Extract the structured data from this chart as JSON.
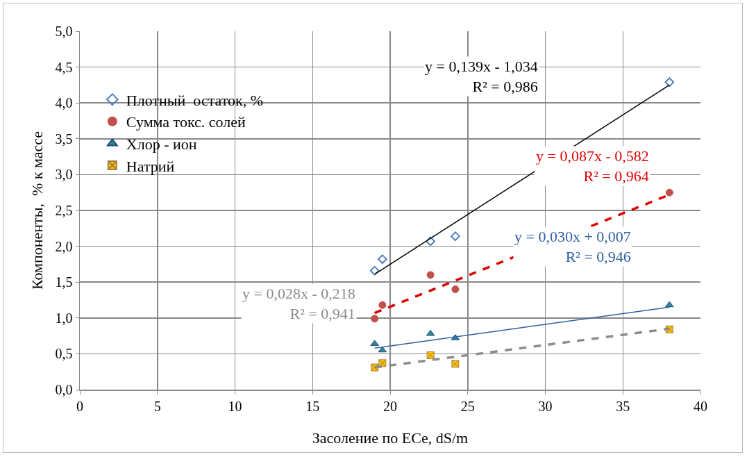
{
  "chart_data": {
    "type": "scatter",
    "xlabel": "Засоление по ECe, dS/m",
    "ylabel": "Компоненты,  % к массе",
    "xlim": [
      0,
      40
    ],
    "xticks": [
      0,
      5,
      10,
      15,
      20,
      25,
      30,
      35,
      40
    ],
    "ylim": [
      0,
      5
    ],
    "yticks": [
      {
        "value": 0,
        "label": "0,0"
      },
      {
        "value": 0.5,
        "label": "0,5"
      },
      {
        "value": 1,
        "label": "1,0"
      },
      {
        "value": 1.5,
        "label": "1,5"
      },
      {
        "value": 2,
        "label": "2,0"
      },
      {
        "value": 2.5,
        "label": "2,5"
      },
      {
        "value": 3,
        "label": "3,0"
      },
      {
        "value": 3.5,
        "label": "3,5"
      },
      {
        "value": 4,
        "label": "4,0"
      },
      {
        "value": 4.5,
        "label": "4,5"
      },
      {
        "value": 5,
        "label": "5,0"
      }
    ],
    "grid": true,
    "legend": "top left",
    "series": [
      {
        "name": "Плотный  остаток, %",
        "color": "#4f81bd",
        "marker": "diamond",
        "x": [
          19.0,
          19.5,
          22.6,
          24.2,
          38.0
        ],
        "values": [
          1.66,
          1.82,
          2.07,
          2.14,
          4.29
        ]
      },
      {
        "name": "Сумма токс. солей",
        "color": "#c0504d",
        "marker": "circle",
        "x": [
          19.0,
          19.5,
          22.6,
          24.2,
          38.0
        ],
        "values": [
          0.99,
          1.18,
          1.6,
          1.4,
          2.75
        ]
      },
      {
        "name": "Хлор - ион",
        "color": "#31859c",
        "marker": "triangle",
        "x": [
          19.0,
          19.5,
          22.6,
          24.2,
          38.0
        ],
        "values": [
          0.64,
          0.55,
          0.78,
          0.72,
          1.18
        ]
      },
      {
        "name": "Натрий",
        "color": "#ffc000",
        "marker": "cross",
        "x": [
          19.0,
          19.5,
          22.6,
          24.2,
          38.0
        ],
        "values": [
          0.31,
          0.37,
          0.48,
          0.36,
          0.84
        ]
      },
      {
        "type": "line",
        "color": "#000000",
        "marker": "none",
        "line_style": "solid",
        "x": [
          19,
          38
        ],
        "values": [
          1.61,
          4.25
        ]
      },
      {
        "type": "line",
        "color": "#e00000",
        "marker": "none",
        "line_style": "dashed",
        "x": [
          19,
          38
        ],
        "values": [
          1.07,
          2.72
        ]
      },
      {
        "type": "line",
        "color": "#2e5fa3",
        "marker": "none",
        "line_style": "solid",
        "x": [
          19,
          38
        ],
        "values": [
          0.58,
          1.15
        ]
      },
      {
        "type": "line",
        "color": "#8c8c8c",
        "marker": "none",
        "line_style": "dashed",
        "x": [
          19,
          38
        ],
        "values": [
          0.31,
          0.85
        ]
      }
    ],
    "annotations": [
      "y = 0,139x - 1,034\nR² = 0,986",
      "y = 0,087x - 0,582\nR² = 0,964",
      "y = 0,030x + 0,007\nR² = 0,946",
      "y = 0,028x - 0,218\nR² = 0,941"
    ]
  }
}
